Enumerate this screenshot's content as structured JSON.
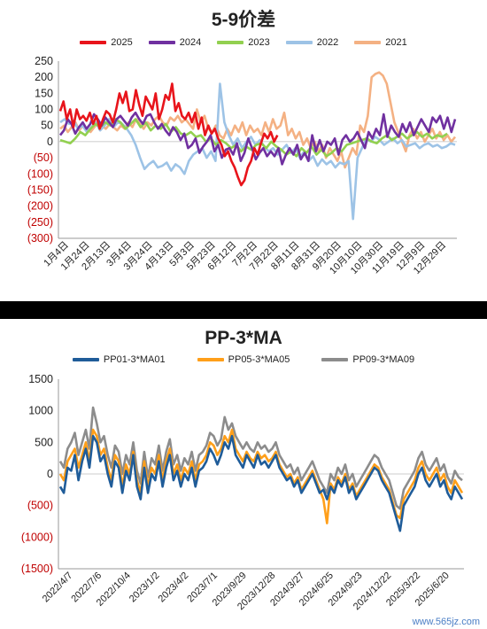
{
  "charts": [
    {
      "title": "5-9价差",
      "chart_data": {
        "type": "line",
        "title": "5-9价差",
        "ylim": [
          -300,
          250
        ],
        "yticks": [
          250,
          200,
          150,
          100,
          50,
          0,
          -50,
          -100,
          -150,
          -200,
          -250,
          -300
        ],
        "ytick_labels": [
          "250",
          "200",
          "150",
          "100",
          "50",
          "0",
          "(50)",
          "(100)",
          "(150)",
          "(200)",
          "(250)",
          "(300)"
        ],
        "x_tick_labels": [
          "1月4日",
          "1月24日",
          "2月13日",
          "3月4日",
          "3月24日",
          "4月13日",
          "5月3日",
          "5月23日",
          "6月12日",
          "7月2日",
          "7月22日",
          "8月11日",
          "8月31日",
          "9月20日",
          "10月10日",
          "10月30日",
          "11月19日",
          "12月9日",
          "12月29日"
        ],
        "legend_position": "top",
        "grid": false,
        "series": [
          {
            "name": "2025",
            "color": "#e8141b",
            "values": [
              95,
              125,
              70,
              100,
              45,
              100,
              70,
              80,
              65,
              90,
              55,
              80,
              40,
              70,
              95,
              85,
              60,
              100,
              150,
              120,
              155,
              95,
              100,
              160,
              115,
              80,
              140,
              120,
              100,
              150,
              70,
              100,
              145,
              130,
              180,
              95,
              120,
              80,
              70,
              90,
              60,
              90,
              40,
              75,
              20,
              50,
              25,
              40,
              10,
              -10,
              -45,
              -30,
              -60,
              -80,
              -110,
              -135,
              -120,
              -80,
              -60,
              -20,
              -40,
              -5,
              25,
              10,
              30,
              0,
              20
            ]
          },
          {
            "name": "2024",
            "color": "#7030a0",
            "values": [
              20,
              35,
              70,
              55,
              25,
              45,
              60,
              40,
              55,
              85,
              70,
              50,
              75,
              60,
              45,
              70,
              80,
              65,
              50,
              75,
              90,
              70,
              55,
              80,
              85,
              60,
              40,
              55,
              35,
              20,
              45,
              30,
              5,
              25,
              -20,
              -10,
              10,
              -35,
              -15,
              0,
              20,
              -30,
              -10,
              -50,
              -25,
              -20,
              -40,
              -5,
              -60,
              -35,
              10,
              -20,
              -55,
              -35,
              -20,
              -45,
              -30,
              -45,
              -20,
              -70,
              -40,
              -20,
              -40,
              -10,
              -55,
              -35,
              -60,
              20,
              -30,
              5,
              -30,
              0,
              -10,
              10,
              -40,
              5,
              20,
              0,
              10,
              30,
              5,
              -20,
              30,
              10,
              40,
              20,
              85,
              15,
              50,
              30,
              15,
              55,
              30,
              60,
              20,
              45,
              70,
              50,
              30,
              75,
              60,
              80,
              40,
              75,
              30,
              70
            ]
          },
          {
            "name": "2023",
            "color": "#92d050",
            "values": [
              5,
              0,
              -5,
              10,
              30,
              20,
              40,
              55,
              45,
              60,
              50,
              70,
              60,
              40,
              55,
              70,
              45,
              60,
              35,
              50,
              40,
              55,
              30,
              45,
              25,
              20,
              30,
              15,
              20,
              0,
              10,
              -10,
              5,
              -5,
              -20,
              -10,
              -30,
              -15,
              -25,
              -10,
              -5,
              -20,
              0,
              -15,
              -25,
              -40,
              -30,
              -45,
              -20,
              -35,
              -15,
              -40,
              -25,
              -45,
              -35,
              -20,
              -30,
              -10,
              -5,
              0,
              5,
              10,
              0,
              -5,
              10,
              20,
              5,
              15,
              25,
              10,
              20,
              30,
              15,
              25,
              10,
              20,
              15,
              25
            ]
          },
          {
            "name": "2022",
            "color": "#9dc3e6",
            "values": [
              60,
              70,
              55,
              65,
              40,
              50,
              30,
              45,
              60,
              35,
              50,
              70,
              45,
              60,
              55,
              40,
              20,
              -10,
              -50,
              -85,
              -70,
              -60,
              -80,
              -75,
              -65,
              -90,
              -70,
              -80,
              -100,
              -60,
              -40,
              -30,
              -20,
              -50,
              -30,
              -60,
              180,
              60,
              20,
              -10,
              10,
              -20,
              0,
              15,
              -10,
              5,
              -15,
              -30,
              -20,
              -40,
              -25,
              -10,
              -35,
              -20,
              -50,
              -30,
              -60,
              -45,
              -75,
              -55,
              -70,
              -60,
              -80,
              -65,
              -70,
              -60,
              -240,
              -50,
              -20,
              10,
              0,
              15,
              5,
              -10,
              0,
              10,
              -5,
              5,
              -15,
              -10,
              -5,
              -20,
              -10,
              -5,
              -15,
              -10,
              -20,
              -15,
              -5,
              -10
            ]
          },
          {
            "name": "2021",
            "color": "#f4b183",
            "values": [
              40,
              50,
              30,
              45,
              60,
              35,
              50,
              40,
              30,
              45,
              60,
              50,
              40,
              55,
              45,
              35,
              50,
              40,
              60,
              45,
              70,
              55,
              40,
              60,
              50,
              70,
              80,
              60,
              50,
              75,
              65,
              80,
              60,
              70,
              55,
              40,
              100,
              60,
              80,
              40,
              30,
              50,
              20,
              10,
              40,
              20,
              50,
              30,
              60,
              20,
              50,
              30,
              40,
              20,
              60,
              30,
              70,
              40,
              50,
              90,
              20,
              40,
              10,
              30,
              -10,
              10,
              -20,
              0,
              -30,
              -10,
              -50,
              -20,
              -40,
              -60,
              -30,
              -80,
              -50,
              -20,
              -40,
              50,
              30,
              80,
              200,
              210,
              215,
              205,
              180,
              120,
              60,
              30,
              0,
              -30,
              20,
              40,
              10,
              30,
              0,
              20,
              40,
              10,
              30,
              5,
              20,
              0,
              15
            ]
          }
        ]
      }
    },
    {
      "title": "PP-3*MA",
      "chart_data": {
        "type": "line",
        "title": "PP-3*MA",
        "ylim": [
          -1500,
          1500
        ],
        "yticks": [
          1500,
          1000,
          500,
          0,
          -500,
          -1000,
          -1500
        ],
        "ytick_labels": [
          "1500",
          "1000",
          "500",
          "0",
          "(500)",
          "(1000)",
          "(1500)"
        ],
        "x_tick_labels": [
          "2022/4/7",
          "2022/7/6",
          "2022/10/4",
          "2023/1/2",
          "2023/4/2",
          "2023/7/1",
          "2023/9/29",
          "2023/12/28",
          "2024/3/27",
          "2024/6/25",
          "2024/9/23",
          "2024/12/22",
          "2025/3/22",
          "2025/6/20"
        ],
        "legend_position": "top",
        "grid": false,
        "series": [
          {
            "name": "PP01-3*MA01",
            "color": "#1f5c99",
            "values": [
              -200,
              -300,
              100,
              50,
              300,
              -100,
              200,
              400,
              100,
              600,
              500,
              200,
              300,
              0,
              -200,
              200,
              100,
              -300,
              50,
              -100,
              300,
              -200,
              -400,
              100,
              -300,
              0,
              -100,
              200,
              -200,
              100,
              300,
              -100,
              50,
              -200,
              0,
              -100,
              100,
              -200,
              50,
              100,
              200,
              400,
              300,
              150,
              300,
              500,
              400,
              600,
              300,
              200,
              100,
              300,
              200,
              100,
              300,
              150,
              200,
              100,
              200,
              300,
              100,
              0,
              -100,
              -50,
              -200,
              -100,
              -300,
              -200,
              -100,
              0,
              -150,
              -300,
              -250,
              -400,
              -200,
              -300,
              -100,
              -200,
              -50,
              -300,
              -200,
              -400,
              -300,
              -200,
              -100,
              0,
              100,
              50,
              -100,
              -200,
              -300,
              -500,
              -700,
              -900,
              -500,
              -400,
              -300,
              -200,
              0,
              100,
              -100,
              -200,
              -100,
              0,
              -200,
              -100,
              -300,
              -400,
              -200,
              -300,
              -400
            ]
          },
          {
            "name": "PP05-3*MA05",
            "color": "#ff9f1a",
            "values": [
              0,
              -100,
              200,
              300,
              400,
              100,
              300,
              500,
              200,
              700,
              600,
              300,
              400,
              100,
              -100,
              300,
              200,
              -200,
              150,
              0,
              350,
              -100,
              -300,
              200,
              -200,
              100,
              0,
              300,
              -100,
              200,
              400,
              0,
              150,
              -100,
              100,
              0,
              200,
              -100,
              150,
              200,
              300,
              500,
              450,
              300,
              400,
              600,
              500,
              700,
              400,
              300,
              200,
              350,
              250,
              200,
              350,
              250,
              300,
              200,
              250,
              350,
              150,
              50,
              -50,
              0,
              -150,
              -50,
              -250,
              -150,
              -50,
              50,
              -100,
              -250,
              -400,
              -780,
              -150,
              -250,
              -50,
              -150,
              0,
              -250,
              -150,
              -350,
              -250,
              -150,
              -50,
              50,
              150,
              100,
              -50,
              -150,
              -250,
              -450,
              -650,
              -700,
              -400,
              -300,
              -200,
              -100,
              100,
              200,
              0,
              -100,
              0,
              100,
              -100,
              0,
              -200,
              -300,
              -100,
              -200,
              -300
            ]
          },
          {
            "name": "PP09-3*MA09",
            "color": "#8c8c8c",
            "values": [
              200,
              100,
              400,
              500,
              650,
              300,
              500,
              700,
              400,
              1050,
              800,
              500,
              600,
              300,
              100,
              450,
              350,
              0,
              300,
              150,
              500,
              50,
              -150,
              350,
              -50,
              250,
              150,
              450,
              50,
              350,
              550,
              150,
              300,
              50,
              250,
              150,
              350,
              50,
              300,
              350,
              450,
              650,
              600,
              450,
              550,
              900,
              700,
              800,
              600,
              500,
              400,
              500,
              400,
              350,
              500,
              400,
              450,
              350,
              400,
              500,
              300,
              200,
              100,
              150,
              0,
              100,
              -100,
              0,
              100,
              200,
              50,
              -100,
              -200,
              -300,
              0,
              -100,
              100,
              0,
              150,
              -100,
              0,
              -200,
              -100,
              0,
              100,
              200,
              300,
              250,
              100,
              0,
              -100,
              -300,
              -500,
              -550,
              -250,
              -150,
              -50,
              50,
              250,
              350,
              150,
              50,
              150,
              250,
              50,
              150,
              -50,
              -150,
              50,
              -50,
              -100
            ]
          }
        ]
      }
    }
  ],
  "watermark": "www.565jz.com"
}
